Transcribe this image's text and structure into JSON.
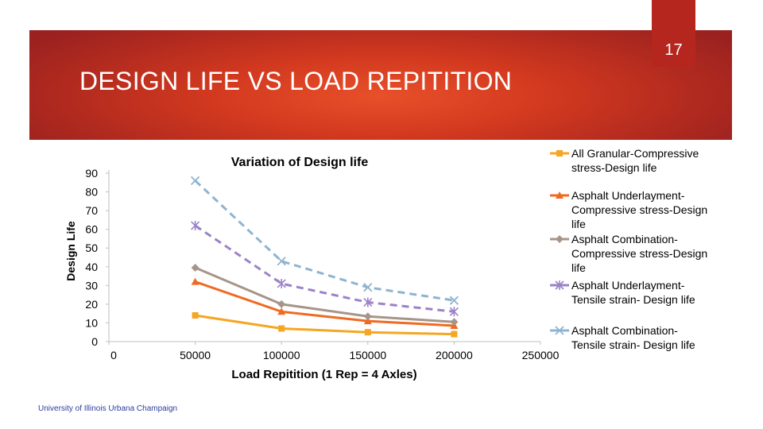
{
  "slide": {
    "number": "17",
    "title": "DESIGN LIFE VS LOAD REPITITION",
    "footer": "University of Illinois Urbana Champaign",
    "banner_color": "#d2391f",
    "footer_color": "#2c3da0"
  },
  "chart_data": {
    "type": "line",
    "title": "Variation of Design life",
    "xlabel": "Load Repitition (1 Rep = 4 Axles)",
    "ylabel": "Design Life",
    "xlim": [
      0,
      250000
    ],
    "ylim": [
      0,
      90
    ],
    "x_ticks": [
      "0",
      "50000",
      "100000",
      "150000",
      "200000",
      "250000"
    ],
    "y_ticks": [
      "0",
      "10",
      "20",
      "30",
      "40",
      "50",
      "60",
      "70",
      "80",
      "90"
    ],
    "x": [
      50000,
      100000,
      150000,
      200000
    ],
    "series": [
      {
        "name": "All Granular-Compressive stress-Design life",
        "values": [
          14,
          7,
          5,
          4
        ],
        "color": "#f5a623",
        "marker": "square",
        "dash": false
      },
      {
        "name": "Asphalt Underlayment-Compressive stress-Design life",
        "values": [
          32,
          16,
          11,
          8.5
        ],
        "color": "#ef6a22",
        "marker": "triangle",
        "dash": false
      },
      {
        "name": "Asphalt Combination-Compressive stress-Design life",
        "values": [
          39.5,
          20,
          13.5,
          10.5
        ],
        "color": "#a69589",
        "marker": "diamond",
        "dash": false
      },
      {
        "name": "Asphalt Underlayment-Tensile strain- Design life",
        "values": [
          62,
          31,
          21,
          16
        ],
        "color": "#9b82c9",
        "marker": "star",
        "dash": true
      },
      {
        "name": "Asphalt Combination-Tensile strain- Design life",
        "values": [
          86,
          43,
          29,
          22
        ],
        "color": "#8fb4cf",
        "marker": "x",
        "dash": true
      }
    ],
    "legend_position": "right"
  }
}
